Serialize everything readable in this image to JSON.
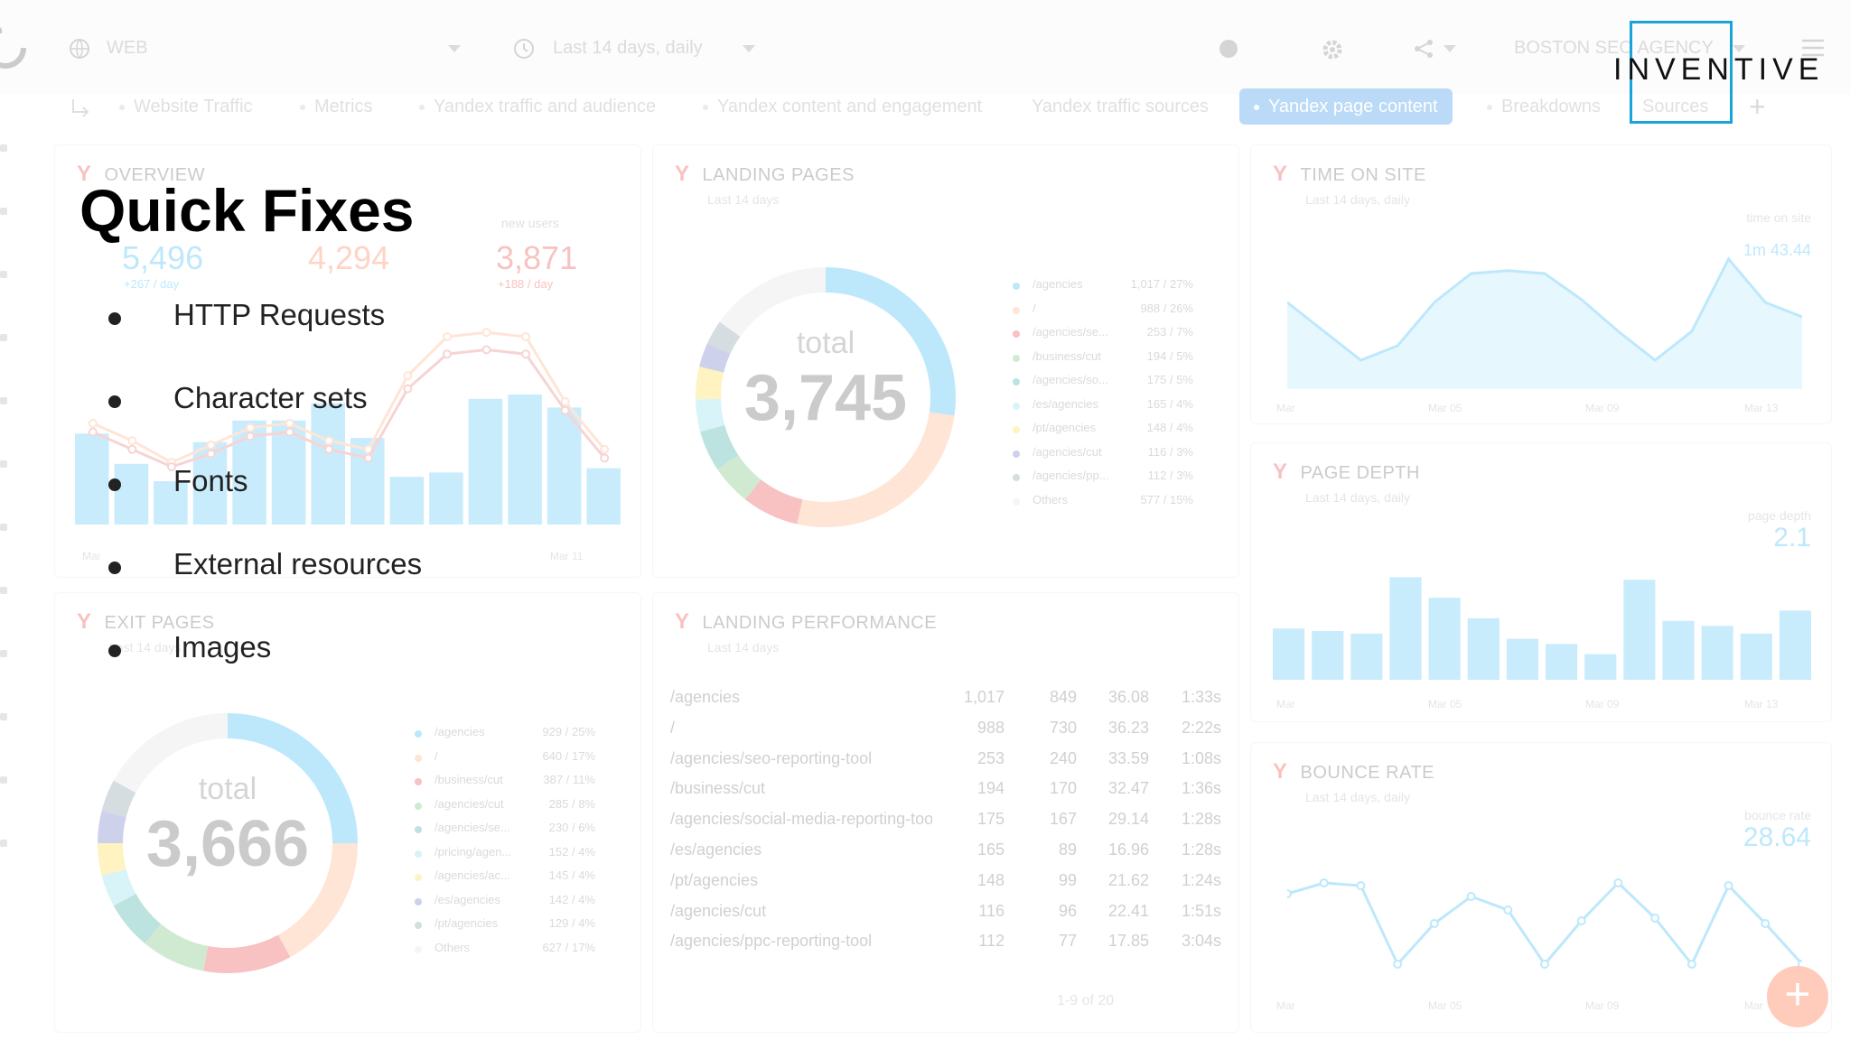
{
  "dashboard": {
    "topbar": {
      "source": "WEB",
      "period": "Last 14 days, daily",
      "agency": "BOSTON SEO AGENCY"
    },
    "tabs": [
      {
        "label": "Website Traffic",
        "active": false
      },
      {
        "label": "Metrics",
        "active": false
      },
      {
        "label": "Yandex traffic and audience",
        "active": false
      },
      {
        "label": "Yandex content and engagement",
        "active": false
      },
      {
        "label": "Yandex traffic sources",
        "active": false
      },
      {
        "label": "Yandex page content",
        "active": true
      },
      {
        "label": "Breakdowns",
        "active": false
      },
      {
        "label": "Sources",
        "active": false
      }
    ],
    "overview": {
      "title": "OVERVIEW",
      "kpis": [
        {
          "value": "5,496",
          "delta": "+267 / day",
          "color": "#29b6f6"
        },
        {
          "value": "4,294",
          "delta": "",
          "color": "#ff7043"
        },
        {
          "value": "3,871",
          "label": "new users",
          "delta": "+188 / day",
          "color": "#e53935"
        }
      ],
      "bars": [
        42,
        28,
        20,
        38,
        48,
        48,
        56,
        40,
        22,
        24,
        58,
        60,
        54,
        26
      ],
      "line1": [
        30,
        22,
        12,
        20,
        28,
        30,
        22,
        18,
        52,
        70,
        72,
        70,
        40,
        18
      ],
      "line2": [
        26,
        18,
        10,
        16,
        24,
        26,
        18,
        14,
        46,
        62,
        64,
        62,
        36,
        14
      ],
      "axis": [
        "Mar",
        "Mar 11"
      ]
    },
    "landing_pages": {
      "title": "LANDING PAGES",
      "subtitle": "Last 14 days",
      "total_label": "total",
      "total": "3,745",
      "legend": [
        {
          "name": "/agencies",
          "value": "1,017 / 27%",
          "color": "#29b6f6"
        },
        {
          "name": "/",
          "value": "988 / 26%",
          "color": "#ffab76"
        },
        {
          "name": "/agencies/se...",
          "value": "253 / 7%",
          "color": "#e53935"
        },
        {
          "name": "/business/cut",
          "value": "194 / 5%",
          "color": "#66bb6a"
        },
        {
          "name": "/agencies/so...",
          "value": "175 / 5%",
          "color": "#26a69a"
        },
        {
          "name": "/es/agencies",
          "value": "165 / 4%",
          "color": "#80deea"
        },
        {
          "name": "/pt/agencies",
          "value": "148 / 4%",
          "color": "#fdd835"
        },
        {
          "name": "/agencies/cut",
          "value": "116 / 3%",
          "color": "#5c6bc0"
        },
        {
          "name": "/agencies/pp...",
          "value": "112 / 3%",
          "color": "#78909c"
        },
        {
          "name": "Others",
          "value": "577 / 15%",
          "color": "#e0e0e0"
        }
      ]
    },
    "time_on_site": {
      "title": "TIME ON SITE",
      "subtitle": "Last 14 days, daily",
      "label": "time on site",
      "value": "1m 43.44",
      "series": [
        60,
        40,
        20,
        30,
        60,
        80,
        82,
        80,
        62,
        40,
        20,
        40,
        90,
        60,
        50
      ],
      "axis": [
        "Mar",
        "Mar 05",
        "Mar 09",
        "Mar 13"
      ]
    },
    "page_depth": {
      "title": "PAGE DEPTH",
      "subtitle": "Last 14 days, daily",
      "label": "page depth",
      "value": "2.1",
      "bars": [
        40,
        38,
        36,
        80,
        64,
        48,
        32,
        28,
        20,
        78,
        46,
        42,
        36,
        54
      ],
      "axis": [
        "Mar",
        "Mar 05",
        "Mar 09",
        "Mar 13"
      ]
    },
    "bounce_rate": {
      "title": "BOUNCE RATE",
      "subtitle": "Last 14 days, daily",
      "label": "bounce rate",
      "value": "28.64",
      "series": [
        62,
        70,
        68,
        10,
        40,
        60,
        50,
        10,
        42,
        70,
        44,
        10,
        68,
        40,
        10
      ],
      "axis": [
        "Mar",
        "Mar 05",
        "Mar 09",
        "Mar"
      ]
    },
    "exit_pages": {
      "title": "EXIT PAGES",
      "subtitle": "Last 14 days",
      "total_label": "total",
      "total": "3,666",
      "legend": [
        {
          "name": "/agencies",
          "value": "929 / 25%",
          "color": "#29b6f6"
        },
        {
          "name": "/",
          "value": "640 / 17%",
          "color": "#ffab76"
        },
        {
          "name": "/business/cut",
          "value": "387 / 11%",
          "color": "#e53935"
        },
        {
          "name": "/agencies/cut",
          "value": "285 / 8%",
          "color": "#66bb6a"
        },
        {
          "name": "/agencies/se...",
          "value": "230 / 6%",
          "color": "#26a69a"
        },
        {
          "name": "/pricing/agen...",
          "value": "152 / 4%",
          "color": "#80deea"
        },
        {
          "name": "/agencies/ac...",
          "value": "145 / 4%",
          "color": "#fdd835"
        },
        {
          "name": "/es/agencies",
          "value": "142 / 4%",
          "color": "#5c6bc0"
        },
        {
          "name": "/pt/agencies",
          "value": "129 / 4%",
          "color": "#78909c"
        },
        {
          "name": "Others",
          "value": "627 / 17%",
          "color": "#e0e0e0"
        }
      ]
    },
    "landing_performance": {
      "title": "LANDING PERFORMANCE",
      "subtitle": "Last 14 days",
      "rows": [
        {
          "page": "/agencies",
          "c1": "1,017",
          "c2": "849",
          "c3": "36.08",
          "c4": "1:33s"
        },
        {
          "page": "/",
          "c1": "988",
          "c2": "730",
          "c3": "36.23",
          "c4": "2:22s"
        },
        {
          "page": "/agencies/seo-reporting-tool",
          "c1": "253",
          "c2": "240",
          "c3": "33.59",
          "c4": "1:08s"
        },
        {
          "page": "/business/cut",
          "c1": "194",
          "c2": "170",
          "c3": "32.47",
          "c4": "1:36s"
        },
        {
          "page": "/agencies/social-media-reporting-tool",
          "c1": "175",
          "c2": "167",
          "c3": "29.14",
          "c4": "1:28s"
        },
        {
          "page": "/es/agencies",
          "c1": "165",
          "c2": "89",
          "c3": "16.96",
          "c4": "1:28s"
        },
        {
          "page": "/pt/agencies",
          "c1": "148",
          "c2": "99",
          "c3": "21.62",
          "c4": "1:24s"
        },
        {
          "page": "/agencies/cut",
          "c1": "116",
          "c2": "96",
          "c3": "22.41",
          "c4": "1:51s"
        },
        {
          "page": "/agencies/ppc-reporting-tool",
          "c1": "112",
          "c2": "77",
          "c3": "17.85",
          "c4": "3:04s"
        }
      ],
      "pager": "1-9 of 20"
    }
  },
  "slide": {
    "logo": "INVENTIVE",
    "title": "Quick Fixes",
    "bullets": [
      "HTTP Requests",
      "Character sets",
      "Fonts",
      "External resources",
      "Images"
    ]
  },
  "colors": {
    "accent": "#1e88e5",
    "logo_box": "#1aa3d9",
    "fab": "#ff5722"
  }
}
